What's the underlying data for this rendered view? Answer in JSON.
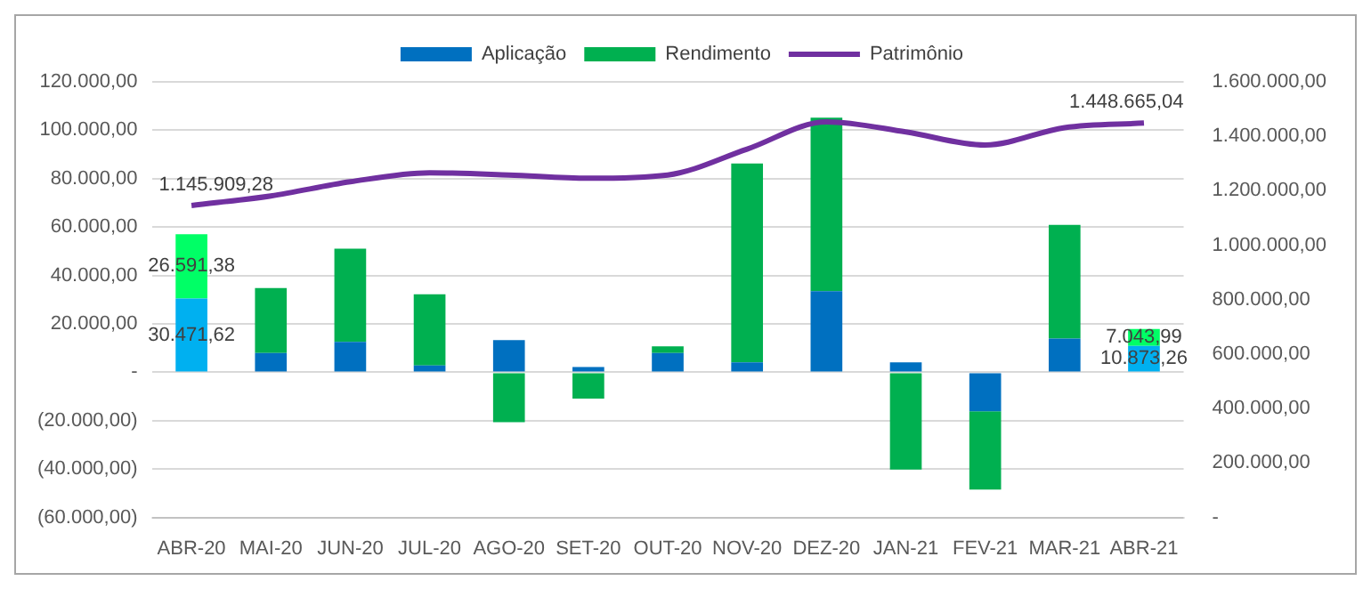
{
  "chart_data": {
    "type": "bar",
    "stacked": true,
    "categories": [
      "ABR-20",
      "MAI-20",
      "JUN-20",
      "JUL-20",
      "AGO-20",
      "SET-20",
      "OUT-20",
      "NOV-20",
      "DEZ-20",
      "JAN-21",
      "FEV-21",
      "MAR-21",
      "ABR-21"
    ],
    "series": [
      {
        "name": "Aplicação",
        "color": "#0070c0",
        "colors": [
          "#00b0f0",
          "#0070c0",
          "#0070c0",
          "#0070c0",
          "#0070c0",
          "#0070c0",
          "#0070c0",
          "#0070c0",
          "#0070c0",
          "#0070c0",
          "#0070c0",
          "#0070c0",
          "#00b0f0"
        ],
        "values": [
          30471.62,
          8000,
          12600,
          2800,
          13300,
          2200,
          8000,
          4100,
          33500,
          4100,
          -16100,
          13900,
          10873.26
        ],
        "value_labels": [
          "30.471,62",
          null,
          null,
          null,
          null,
          null,
          null,
          null,
          null,
          null,
          null,
          null,
          "10.873,26"
        ]
      },
      {
        "name": "Rendimento",
        "color": "#00b050",
        "colors": [
          "#00ff66",
          "#00b050",
          "#00b050",
          "#00b050",
          "#00b050",
          "#00b050",
          "#00b050",
          "#00b050",
          "#00b050",
          "#00b050",
          "#00b050",
          "#00b050",
          "#00ff66"
        ],
        "values": [
          26591.38,
          26800,
          38500,
          29400,
          -20600,
          -10900,
          2700,
          82200,
          71700,
          -40200,
          -32400,
          47000,
          7043.99
        ],
        "value_labels": [
          "26.591,38",
          null,
          null,
          null,
          null,
          null,
          null,
          null,
          null,
          null,
          null,
          null,
          "7.043,99"
        ]
      },
      {
        "name": "Patrimônio",
        "type": "line",
        "axis": "y2",
        "color": "#7030a0",
        "values": [
          1145909.28,
          1181000,
          1233000,
          1266000,
          1258000,
          1246000,
          1258000,
          1353000,
          1453000,
          1416000,
          1368000,
          1432000,
          1448665.04
        ],
        "value_labels": [
          "1.145.909,28",
          null,
          null,
          null,
          null,
          null,
          null,
          null,
          null,
          null,
          null,
          null,
          "1.448.665,04"
        ]
      }
    ],
    "ylim": [
      -60000,
      120000
    ],
    "yticks": [
      {
        "value": -60000,
        "label": "(60.000,00)"
      },
      {
        "value": -40000,
        "label": "(40.000,00)"
      },
      {
        "value": -20000,
        "label": "(20.000,00)"
      },
      {
        "value": 0,
        "label": "-"
      },
      {
        "value": 20000,
        "label": "20.000,00"
      },
      {
        "value": 40000,
        "label": "40.000,00"
      },
      {
        "value": 60000,
        "label": "60.000,00"
      },
      {
        "value": 80000,
        "label": "80.000,00"
      },
      {
        "value": 100000,
        "label": "100.000,00"
      },
      {
        "value": 120000,
        "label": "120.000,00"
      }
    ],
    "y2lim": [
      0,
      1600000
    ],
    "y2ticks": [
      {
        "value": 0,
        "label": "-"
      },
      {
        "value": 200000,
        "label": "200.000,00"
      },
      {
        "value": 400000,
        "label": "400.000,00"
      },
      {
        "value": 600000,
        "label": "600.000,00"
      },
      {
        "value": 800000,
        "label": "800.000,00"
      },
      {
        "value": 1000000,
        "label": "1.000.000,00"
      },
      {
        "value": 1200000,
        "label": "1.200.000,00"
      },
      {
        "value": 1400000,
        "label": "1.400.000,00"
      },
      {
        "value": 1600000,
        "label": "1.600.000,00"
      }
    ],
    "grid": "y",
    "legend": "top",
    "marker": "none"
  }
}
